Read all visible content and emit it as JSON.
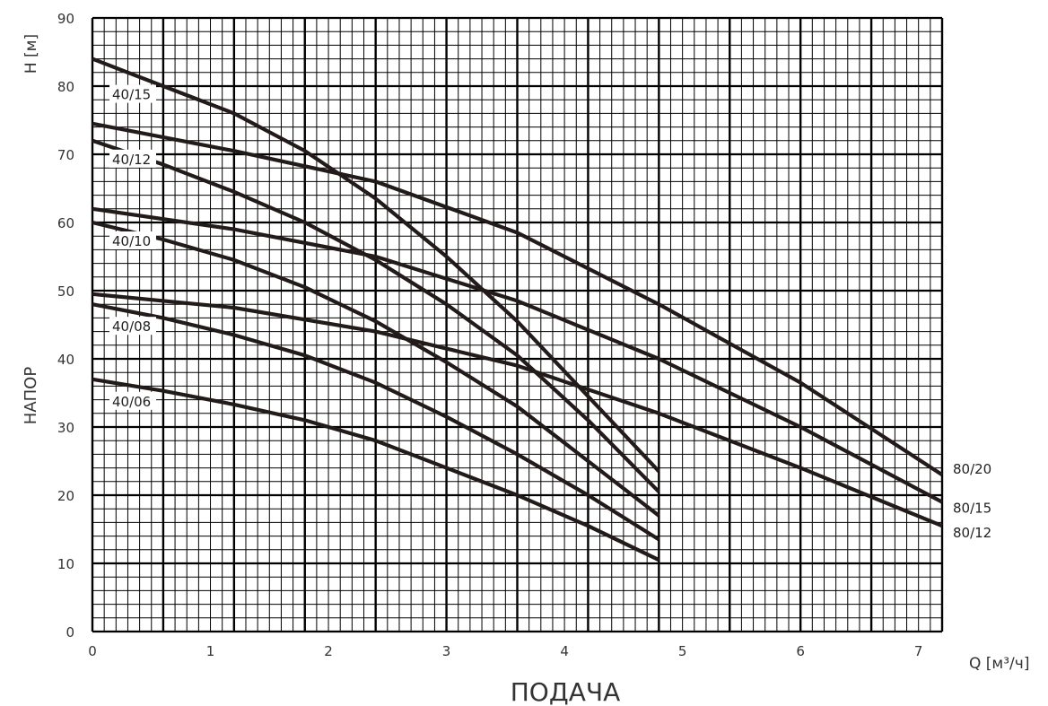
{
  "chart_data": {
    "type": "line",
    "ylabel_units": "H [м]",
    "ylabel_name": "НАПОР",
    "xlabel_units": "Q [м³/ч]",
    "xlabel_name": "ПОДАЧА",
    "xlim": [
      0,
      7.2
    ],
    "ylim": [
      0,
      90
    ],
    "x_major_ticks": [
      0,
      1,
      2,
      3,
      4,
      5,
      6,
      7
    ],
    "y_major_ticks": [
      0,
      10,
      20,
      30,
      40,
      50,
      60,
      70,
      80,
      90
    ],
    "x_minor_step": 0.1,
    "y_minor_step": 2,
    "grid": true,
    "series": [
      {
        "name": "40/15",
        "x": [
          0,
          0.6,
          1.2,
          1.8,
          2.4,
          3.0,
          3.6,
          4.2,
          4.8
        ],
        "y": [
          84,
          80,
          76,
          70.5,
          63.5,
          55,
          45.5,
          34.5,
          23.5
        ],
        "label_pos": "left"
      },
      {
        "name": "40/12",
        "x": [
          0,
          0.6,
          1.2,
          1.8,
          2.4,
          3.0,
          3.6,
          4.2,
          4.8
        ],
        "y": [
          72,
          68.5,
          64.5,
          60,
          54.5,
          48,
          40.5,
          31,
          20.5
        ],
        "label_pos": "left"
      },
      {
        "name": "40/10",
        "x": [
          0,
          0.6,
          1.2,
          1.8,
          2.4,
          3.0,
          3.6,
          4.2,
          4.8
        ],
        "y": [
          60,
          57.5,
          54.5,
          50.5,
          45.5,
          39.5,
          33,
          25,
          17
        ],
        "label_pos": "left"
      },
      {
        "name": "40/08",
        "x": [
          0,
          0.6,
          1.2,
          1.8,
          2.4,
          3.0,
          3.6,
          4.2,
          4.8
        ],
        "y": [
          48,
          46,
          43.5,
          40.5,
          36.5,
          31.5,
          26,
          20,
          13.5
        ],
        "label_pos": "left"
      },
      {
        "name": "40/06",
        "x": [
          0,
          0.6,
          1.2,
          1.8,
          2.4,
          3.0,
          3.6,
          4.2,
          4.8
        ],
        "y": [
          37,
          35.3,
          33.3,
          31,
          28,
          24,
          20,
          15.5,
          10.5
        ],
        "label_pos": "left"
      },
      {
        "name": "80/20",
        "x": [
          0,
          1.2,
          2.4,
          3.6,
          4.8,
          6.0,
          7.2
        ],
        "y": [
          74.5,
          70.5,
          66,
          58.5,
          48,
          36.5,
          23
        ],
        "label_pos": "right"
      },
      {
        "name": "80/15",
        "x": [
          0,
          1.2,
          2.4,
          3.6,
          4.8,
          6.0,
          7.2
        ],
        "y": [
          62,
          59,
          55,
          48.5,
          40,
          30,
          19
        ],
        "label_pos": "right"
      },
      {
        "name": "80/12",
        "x": [
          0,
          1.2,
          2.4,
          3.6,
          4.8,
          6.0,
          7.2
        ],
        "y": [
          49.5,
          47.5,
          44,
          39,
          32,
          24,
          15.5
        ],
        "label_pos": "right"
      }
    ]
  }
}
